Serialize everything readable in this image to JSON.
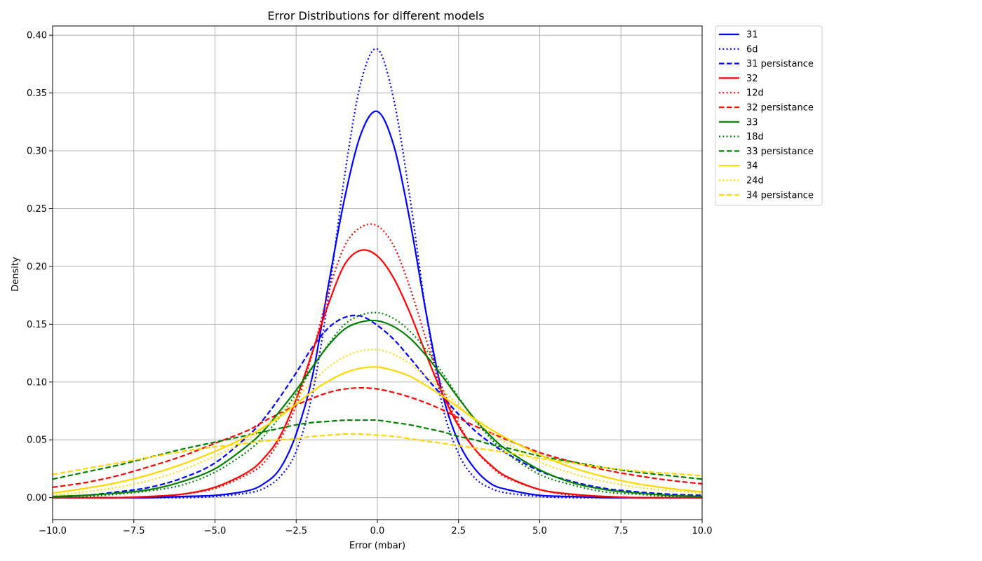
{
  "chart_data": {
    "type": "line",
    "title": "Error Distributions for different models",
    "xlabel": "Error (mbar)",
    "ylabel": "Density",
    "xlim": [
      -10,
      10
    ],
    "ylim": [
      -0.019,
      0.408
    ],
    "x_ticks": [
      -10.0,
      -7.5,
      -5.0,
      -2.5,
      0.0,
      2.5,
      5.0,
      7.5,
      10.0
    ],
    "x_tick_labels": [
      "−10.0",
      "−7.5",
      "−5.0",
      "−2.5",
      "0.0",
      "2.5",
      "5.0",
      "7.5",
      "10.0"
    ],
    "y_ticks": [
      0.0,
      0.05,
      0.1,
      0.15,
      0.2,
      0.25,
      0.3,
      0.35,
      0.4
    ],
    "y_tick_labels": [
      "0.00",
      "0.05",
      "0.10",
      "0.15",
      "0.20",
      "0.25",
      "0.30",
      "0.35",
      "0.40"
    ],
    "grid": true,
    "legend_position": "outside-top-right",
    "x": [
      -10,
      -9,
      -8,
      -7,
      -6,
      -5,
      -4,
      -3.5,
      -3,
      -2.5,
      -2,
      -1.5,
      -1,
      -0.5,
      0,
      0.5,
      1,
      1.5,
      2,
      2.5,
      3,
      3.5,
      4,
      5,
      6,
      7,
      8,
      9,
      10
    ],
    "series": [
      {
        "name": "31",
        "color": "#0000ff",
        "style": "solid",
        "values": [
          0.0,
          0.0,
          0.0,
          0.0,
          0.001,
          0.002,
          0.006,
          0.012,
          0.025,
          0.055,
          0.105,
          0.185,
          0.26,
          0.315,
          0.334,
          0.305,
          0.24,
          0.16,
          0.09,
          0.048,
          0.025,
          0.012,
          0.007,
          0.002,
          0.001,
          0.0,
          0.0,
          0.0,
          0.0
        ]
      },
      {
        "name": "6d",
        "color": "#0000ff",
        "style": "dotted",
        "values": [
          0.0,
          0.0,
          0.0,
          0.0,
          0.0,
          0.001,
          0.004,
          0.008,
          0.018,
          0.04,
          0.09,
          0.175,
          0.28,
          0.36,
          0.388,
          0.345,
          0.26,
          0.16,
          0.08,
          0.038,
          0.017,
          0.008,
          0.004,
          0.001,
          0.0,
          0.0,
          0.0,
          0.0,
          0.0
        ]
      },
      {
        "name": "31 persistance",
        "color": "#0000ff",
        "style": "dashed",
        "values": [
          0.001,
          0.002,
          0.005,
          0.009,
          0.017,
          0.03,
          0.053,
          0.068,
          0.087,
          0.108,
          0.13,
          0.147,
          0.156,
          0.157,
          0.149,
          0.137,
          0.121,
          0.104,
          0.088,
          0.072,
          0.058,
          0.047,
          0.038,
          0.023,
          0.014,
          0.008,
          0.005,
          0.003,
          0.002
        ]
      },
      {
        "name": "32",
        "color": "#ff0000",
        "style": "solid",
        "values": [
          0.0,
          0.0,
          0.0,
          0.001,
          0.003,
          0.009,
          0.022,
          0.034,
          0.053,
          0.085,
          0.126,
          0.168,
          0.202,
          0.214,
          0.209,
          0.19,
          0.16,
          0.124,
          0.09,
          0.062,
          0.042,
          0.028,
          0.018,
          0.007,
          0.003,
          0.001,
          0.0,
          0.0,
          0.0
        ]
      },
      {
        "name": "12d",
        "color": "#ff0000",
        "style": "dotted",
        "values": [
          0.0,
          0.0,
          0.0,
          0.001,
          0.003,
          0.008,
          0.02,
          0.03,
          0.05,
          0.08,
          0.125,
          0.178,
          0.218,
          0.234,
          0.235,
          0.218,
          0.182,
          0.137,
          0.095,
          0.064,
          0.042,
          0.027,
          0.017,
          0.007,
          0.002,
          0.001,
          0.0,
          0.0,
          0.0
        ]
      },
      {
        "name": "32 persistance",
        "color": "#ff0000",
        "style": "dashed",
        "values": [
          0.009,
          0.013,
          0.019,
          0.027,
          0.036,
          0.047,
          0.058,
          0.066,
          0.073,
          0.08,
          0.086,
          0.091,
          0.094,
          0.095,
          0.094,
          0.091,
          0.087,
          0.082,
          0.076,
          0.069,
          0.062,
          0.056,
          0.05,
          0.039,
          0.031,
          0.024,
          0.019,
          0.015,
          0.012
        ]
      },
      {
        "name": "33",
        "color": "#008000",
        "style": "solid",
        "values": [
          0.001,
          0.002,
          0.004,
          0.007,
          0.014,
          0.025,
          0.045,
          0.058,
          0.075,
          0.093,
          0.113,
          0.132,
          0.146,
          0.152,
          0.153,
          0.148,
          0.138,
          0.123,
          0.105,
          0.086,
          0.068,
          0.053,
          0.041,
          0.024,
          0.013,
          0.007,
          0.004,
          0.002,
          0.001
        ]
      },
      {
        "name": "18d",
        "color": "#008000",
        "style": "dotted",
        "values": [
          0.0,
          0.001,
          0.003,
          0.006,
          0.011,
          0.022,
          0.04,
          0.053,
          0.07,
          0.09,
          0.112,
          0.133,
          0.15,
          0.158,
          0.16,
          0.155,
          0.144,
          0.128,
          0.108,
          0.087,
          0.067,
          0.051,
          0.038,
          0.02,
          0.011,
          0.005,
          0.003,
          0.001,
          0.001
        ]
      },
      {
        "name": "33 persistance",
        "color": "#008000",
        "style": "dashed",
        "values": [
          0.016,
          0.022,
          0.028,
          0.035,
          0.042,
          0.048,
          0.054,
          0.057,
          0.06,
          0.063,
          0.065,
          0.066,
          0.067,
          0.067,
          0.067,
          0.065,
          0.063,
          0.06,
          0.057,
          0.053,
          0.05,
          0.046,
          0.043,
          0.036,
          0.031,
          0.026,
          0.022,
          0.019,
          0.016
        ]
      },
      {
        "name": "34",
        "color": "#ffd700",
        "style": "solid",
        "values": [
          0.004,
          0.008,
          0.013,
          0.02,
          0.029,
          0.04,
          0.053,
          0.061,
          0.07,
          0.081,
          0.092,
          0.101,
          0.108,
          0.112,
          0.113,
          0.11,
          0.105,
          0.097,
          0.088,
          0.078,
          0.068,
          0.059,
          0.051,
          0.037,
          0.026,
          0.018,
          0.012,
          0.008,
          0.005
        ]
      },
      {
        "name": "24d",
        "color": "#ffd700",
        "style": "dotted",
        "values": [
          0.002,
          0.005,
          0.009,
          0.015,
          0.024,
          0.036,
          0.05,
          0.06,
          0.072,
          0.086,
          0.1,
          0.113,
          0.122,
          0.127,
          0.128,
          0.124,
          0.116,
          0.105,
          0.093,
          0.08,
          0.067,
          0.056,
          0.047,
          0.031,
          0.021,
          0.014,
          0.009,
          0.006,
          0.004
        ]
      },
      {
        "name": "34 persistance",
        "color": "#ffd700",
        "style": "dashed",
        "values": [
          0.02,
          0.025,
          0.03,
          0.035,
          0.04,
          0.044,
          0.047,
          0.049,
          0.05,
          0.051,
          0.053,
          0.054,
          0.055,
          0.055,
          0.054,
          0.053,
          0.051,
          0.049,
          0.047,
          0.045,
          0.043,
          0.041,
          0.039,
          0.034,
          0.03,
          0.026,
          0.023,
          0.021,
          0.019
        ]
      }
    ]
  }
}
